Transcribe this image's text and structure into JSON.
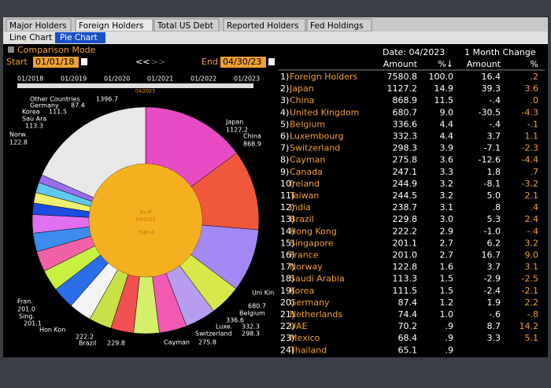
{
  "tabs": [
    "Major Holders",
    "Foreign Holders",
    "Total US Debt",
    "Reported Holders",
    "Fed Holdings"
  ],
  "subtabs": [
    "Line Chart",
    "Pie Chart"
  ],
  "comparison_mode": "Comparison Mode",
  "start": {
    "label": "Start",
    "value": "01/01/18"
  },
  "end": {
    "label": "End",
    "value": "04/30/23"
  },
  "nav": [
    "<<",
    ">>"
  ],
  "timeline": {
    "ticks": [
      "01/2018",
      "01/2019",
      "01/2020",
      "01/2021",
      "01/2022",
      "01/2023"
    ],
    "marker": "04/2023"
  },
  "table": {
    "date": "Date: 04/2023",
    "change_header": "1 Month Change",
    "headers": [
      "Amount",
      "%↓",
      "Amount",
      "%"
    ],
    "rows": [
      {
        "rank": "1)",
        "name": "Foreign Holders",
        "amount": "7580.8",
        "pct": "100.0",
        "chg": "16.4",
        "chg_pct": ".2"
      },
      {
        "rank": "2)",
        "name": "Japan",
        "amount": "1127.2",
        "pct": "14.9",
        "chg": "39.3",
        "chg_pct": "3.6"
      },
      {
        "rank": "3)",
        "name": "China",
        "amount": "868.9",
        "pct": "11.5",
        "chg": "-.4",
        "chg_pct": ".0"
      },
      {
        "rank": "4)",
        "name": "United Kingdom",
        "amount": "680.7",
        "pct": "9.0",
        "chg": "-30.5",
        "chg_pct": "-4.3"
      },
      {
        "rank": "5)",
        "name": "Belgium",
        "amount": "336.6",
        "pct": "4.4",
        "chg": "-.4",
        "chg_pct": "-.1"
      },
      {
        "rank": "6)",
        "name": "Luxembourg",
        "amount": "332.3",
        "pct": "4.4",
        "chg": "3.7",
        "chg_pct": "1.1"
      },
      {
        "rank": "7)",
        "name": "Switzerland",
        "amount": "298.3",
        "pct": "3.9",
        "chg": "-7.1",
        "chg_pct": "-2.3"
      },
      {
        "rank": "8)",
        "name": "Cayman",
        "amount": "275.8",
        "pct": "3.6",
        "chg": "-12.6",
        "chg_pct": "-4.4"
      },
      {
        "rank": "9)",
        "name": "Canada",
        "amount": "247.1",
        "pct": "3.3",
        "chg": "1.8",
        "chg_pct": ".7"
      },
      {
        "rank": "10)",
        "name": "Ireland",
        "amount": "244.9",
        "pct": "3.2",
        "chg": "-8.1",
        "chg_pct": "-3.2"
      },
      {
        "rank": "11)",
        "name": "Taiwan",
        "amount": "244.5",
        "pct": "3.2",
        "chg": "5.0",
        "chg_pct": "2.1"
      },
      {
        "rank": "12)",
        "name": "India",
        "amount": "238.7",
        "pct": "3.1",
        "chg": ".8",
        "chg_pct": ".4"
      },
      {
        "rank": "13)",
        "name": "Brazil",
        "amount": "229.8",
        "pct": "3.0",
        "chg": "5.3",
        "chg_pct": "2.4"
      },
      {
        "rank": "14)",
        "name": "Hong Kong",
        "amount": "222.2",
        "pct": "2.9",
        "chg": "-1.0",
        "chg_pct": "-.4"
      },
      {
        "rank": "15)",
        "name": "Singapore",
        "amount": "201.1",
        "pct": "2.7",
        "chg": "6.2",
        "chg_pct": "3.2"
      },
      {
        "rank": "16)",
        "name": "France",
        "amount": "201.0",
        "pct": "2.7",
        "chg": "16.7",
        "chg_pct": "9.0"
      },
      {
        "rank": "17)",
        "name": "Norway",
        "amount": "122.8",
        "pct": "1.6",
        "chg": "3.7",
        "chg_pct": "3.1"
      },
      {
        "rank": "18)",
        "name": "Saudi Arabia",
        "amount": "113.3",
        "pct": "1.5",
        "chg": "-2.9",
        "chg_pct": "-2.5"
      },
      {
        "rank": "19)",
        "name": "Korea",
        "amount": "111.5",
        "pct": "1.5",
        "chg": "-2.4",
        "chg_pct": "-2.1"
      },
      {
        "rank": "20)",
        "name": "Germany",
        "amount": "87.4",
        "pct": "1.2",
        "chg": "1.9",
        "chg_pct": "2.2"
      },
      {
        "rank": "21)",
        "name": "Netherlands",
        "amount": "74.4",
        "pct": "1.0",
        "chg": "-.6",
        "chg_pct": "-.8"
      },
      {
        "rank": "22)",
        "name": "UAE",
        "amount": "70.2",
        "pct": ".9",
        "chg": "8.7",
        "chg_pct": "14.2"
      },
      {
        "rank": "23)",
        "name": "Mexico",
        "amount": "68.4",
        "pct": ".9",
        "chg": "3.3",
        "chg_pct": "5.1"
      },
      {
        "rank": "24)",
        "name": "Thailand",
        "amount": "65.1",
        "pct": ".9"
      }
    ]
  },
  "pie": {
    "center": [
      "As of",
      "04/2023",
      "7580.8"
    ],
    "colors": [
      "#e84cc4",
      "#f0583c",
      "#a488f4",
      "#d6e84a",
      "#b89cf0",
      "#f25ab4",
      "#d4f06a",
      "#f25050",
      "#c8e046",
      "#f4f4f4",
      "#2a6ee8",
      "#c8f040",
      "#f062a8",
      "#3c8cf0",
      "#e070f0",
      "#1c4ce0",
      "#f0f070",
      "#60c8f0",
      "#9c6cf0",
      "#e8e8e8"
    ],
    "labels": [
      {
        "name": "Other Countries",
        "value": "1396.7"
      },
      {
        "name": "Germany",
        "value": "87.4"
      },
      {
        "name": "Korea",
        "value": "111.5"
      },
      {
        "name": "Sau Ara",
        "value": "113.3"
      },
      {
        "name": "Norw.",
        "value": "122.8"
      },
      {
        "name": "Japan",
        "value": "1127.2"
      },
      {
        "name": "China",
        "value": "868.9"
      },
      {
        "name": "Uni Kin",
        "value": "680.7"
      },
      {
        "name": "Belgium",
        "value": "336.6"
      },
      {
        "name": "Luxe.",
        "value": "332.3"
      },
      {
        "name": "Switzerland",
        "value": "298.3"
      },
      {
        "name": "Cayman",
        "value": "275.8"
      },
      {
        "name": "Brazil",
        "value": "229.8"
      },
      {
        "name": "Hon Kon",
        "value": "222.2"
      },
      {
        "name": "Sing.",
        "value": "201.1"
      },
      {
        "name": "Fran.",
        "value": "201.0"
      }
    ]
  }
}
